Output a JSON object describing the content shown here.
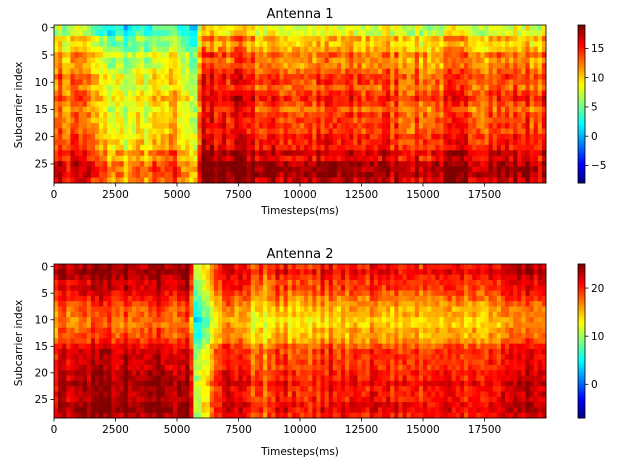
{
  "chart_data": [
    {
      "type": "heatmap",
      "title": "Antenna 1",
      "xlabel": "Timesteps(ms)",
      "ylabel": "Subcarrier index",
      "xlim": [
        0,
        20000
      ],
      "ylim": [
        29,
        0
      ],
      "x_ticks": [
        0,
        2500,
        5000,
        7500,
        10000,
        12500,
        15000,
        17500
      ],
      "x_tick_labels": [
        "0",
        "2500",
        "5000",
        "7500",
        "10000",
        "12500",
        "15000",
        "17500"
      ],
      "y_ticks": [
        0,
        5,
        10,
        15,
        20,
        25
      ],
      "y_tick_labels": [
        "0",
        "5",
        "10",
        "15",
        "20",
        "25"
      ],
      "colormap": "jet",
      "color_range": [
        -8,
        19
      ],
      "colorbar_ticks": [
        -5,
        0,
        5,
        10,
        15
      ],
      "colorbar_tick_labels": [
        "−5",
        "0",
        "5",
        "10",
        "15"
      ],
      "n_subcarriers": 29,
      "row_values": [
        6,
        6,
        9,
        8,
        9,
        11,
        10,
        10,
        11,
        12,
        12,
        11,
        12,
        13,
        12,
        11,
        12,
        12,
        12,
        12,
        13,
        13,
        13,
        15,
        14,
        16,
        16,
        16,
        15
      ],
      "column_profile": {
        "time_ms": [
          0,
          500,
          1000,
          2000,
          3000,
          4000,
          5000,
          5500,
          5800,
          6000,
          6300,
          6600,
          7000,
          7500,
          8000,
          9000,
          10000,
          12500,
          14000,
          15000,
          16000,
          17500,
          19000,
          20000
        ],
        "offset": [
          2,
          0,
          2,
          -3,
          -4,
          -3,
          -2,
          -5,
          -4,
          5,
          4,
          2,
          3,
          5,
          3,
          2,
          2,
          2,
          2,
          1,
          2,
          2,
          2,
          2
        ]
      }
    },
    {
      "type": "heatmap",
      "title": "Antenna 2",
      "xlabel": "Timesteps(ms)",
      "ylabel": "Subcarrier index",
      "xlim": [
        0,
        20000
      ],
      "ylim": [
        29,
        0
      ],
      "x_ticks": [
        0,
        2500,
        5000,
        7500,
        10000,
        12500,
        15000,
        17500
      ],
      "x_tick_labels": [
        "0",
        "2500",
        "5000",
        "7500",
        "10000",
        "12500",
        "15000",
        "17500"
      ],
      "y_ticks": [
        0,
        5,
        10,
        15,
        20,
        25
      ],
      "y_tick_labels": [
        "0",
        "5",
        "10",
        "15",
        "20",
        "25"
      ],
      "colormap": "jet",
      "color_range": [
        -7,
        25
      ],
      "colorbar_ticks": [
        0,
        10,
        20
      ],
      "colorbar_tick_labels": [
        "0",
        "10",
        "20"
      ],
      "n_subcarriers": 29,
      "row_values": [
        22,
        23,
        22,
        21,
        21,
        20,
        19,
        18,
        17,
        17,
        16,
        16,
        17,
        17,
        18,
        20,
        21,
        21,
        21,
        21,
        22,
        22,
        23,
        22,
        22,
        22,
        23,
        23,
        22
      ],
      "column_profile": {
        "time_ms": [
          0,
          500,
          1000,
          2000,
          3000,
          4000,
          5000,
          5500,
          5800,
          6000,
          6300,
          6600,
          7000,
          7500,
          8000,
          8500,
          9000,
          10000,
          12500,
          15000,
          17500,
          20000
        ],
        "offset": [
          -1,
          1,
          1,
          2,
          2,
          2,
          1,
          2,
          -14,
          -11,
          -7,
          -4,
          0,
          -1,
          -3,
          -4,
          -2,
          -2,
          -1,
          -2,
          -1,
          1
        ]
      }
    }
  ]
}
